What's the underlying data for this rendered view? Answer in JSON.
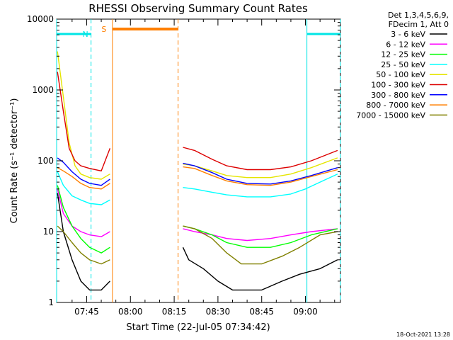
{
  "chart_data": {
    "type": "line",
    "title": "RHESSI Observing Summary Count Rates",
    "xlabel": "Start Time (22-Jul-05 07:34:42)",
    "ylabel": "Count Rate (s⁻¹ detector⁻¹)",
    "yscale": "log",
    "ylim": [
      1,
      10000
    ],
    "xlim": [
      "07:34:42",
      "09:12:00"
    ],
    "y_ticks": [
      "1",
      "10",
      "100",
      "1000",
      "10000"
    ],
    "x_ticks": [
      "07:45",
      "08:00",
      "08:15",
      "08:30",
      "08:45",
      "09:00"
    ],
    "grid": false,
    "legend_position": "right",
    "legend_header": [
      "Det 1,3,4,5,6,9,",
      "FDecim 1, Att 0"
    ],
    "timestamp": "18-Oct-2021 13:28",
    "flag_labels": {
      "n": "N",
      "s": "S"
    },
    "flags": [
      {
        "name": "night",
        "label_key": "n",
        "color": "#00e5e5",
        "intervals": [
          [
            "07:34:42",
            "07:46:30"
          ],
          [
            "09:00:30",
            "09:12:00"
          ]
        ]
      },
      {
        "name": "saa",
        "label_key": "s",
        "color": "#ff7f00",
        "intervals": [
          [
            "07:53:50",
            "08:16:20"
          ]
        ]
      }
    ],
    "gaps": [
      [
        "07:53:50",
        "08:17:30"
      ]
    ],
    "series": [
      {
        "name": "3 - 6 keV",
        "color": "#000000",
        "points": [
          [
            "07:35",
            35
          ],
          [
            "07:37",
            10
          ],
          [
            "07:40",
            4
          ],
          [
            "07:43",
            2
          ],
          [
            "07:46",
            1.5
          ],
          [
            "07:50",
            1.5
          ],
          [
            "07:53",
            2
          ],
          [
            "08:18",
            6
          ],
          [
            "08:20",
            4
          ],
          [
            "08:25",
            3
          ],
          [
            "08:30",
            2
          ],
          [
            "08:35",
            1.5
          ],
          [
            "08:45",
            1.5
          ],
          [
            "08:52",
            2
          ],
          [
            "08:58",
            2.5
          ],
          [
            "09:05",
            3
          ],
          [
            "09:11",
            4
          ]
        ]
      },
      {
        "name": "6 - 12 keV",
        "color": "#ff00ff",
        "points": [
          [
            "07:35",
            40
          ],
          [
            "07:37",
            18
          ],
          [
            "07:40",
            12
          ],
          [
            "07:43",
            10
          ],
          [
            "07:46",
            9
          ],
          [
            "07:50",
            8.5
          ],
          [
            "07:53",
            10
          ],
          [
            "08:18",
            11
          ],
          [
            "08:22",
            10
          ],
          [
            "08:28",
            9
          ],
          [
            "08:33",
            8
          ],
          [
            "08:40",
            7.5
          ],
          [
            "08:48",
            8
          ],
          [
            "08:55",
            9
          ],
          [
            "09:02",
            10
          ],
          [
            "09:11",
            11
          ]
        ]
      },
      {
        "name": "12 - 25 keV",
        "color": "#00ff00",
        "points": [
          [
            "07:35",
            45
          ],
          [
            "07:37",
            22
          ],
          [
            "07:40",
            12
          ],
          [
            "07:43",
            8
          ],
          [
            "07:46",
            6
          ],
          [
            "07:50",
            5
          ],
          [
            "07:53",
            6
          ],
          [
            "08:18",
            12
          ],
          [
            "08:22",
            11
          ],
          [
            "08:28",
            9
          ],
          [
            "08:33",
            7
          ],
          [
            "08:40",
            6
          ],
          [
            "08:48",
            6
          ],
          [
            "08:55",
            7
          ],
          [
            "09:02",
            9
          ],
          [
            "09:11",
            11
          ]
        ]
      },
      {
        "name": "25 - 50 keV",
        "color": "#00ffff",
        "points": [
          [
            "07:35",
            70
          ],
          [
            "07:37",
            45
          ],
          [
            "07:40",
            32
          ],
          [
            "07:43",
            28
          ],
          [
            "07:46",
            25
          ],
          [
            "07:50",
            24
          ],
          [
            "07:53",
            28
          ],
          [
            "08:18",
            42
          ],
          [
            "08:22",
            40
          ],
          [
            "08:28",
            36
          ],
          [
            "08:33",
            33
          ],
          [
            "08:40",
            31
          ],
          [
            "08:48",
            31
          ],
          [
            "08:55",
            34
          ],
          [
            "09:00",
            40
          ],
          [
            "09:05",
            50
          ],
          [
            "09:11",
            65
          ]
        ]
      },
      {
        "name": "50 - 100 keV",
        "color": "#e5e500",
        "points": [
          [
            "07:35",
            3500
          ],
          [
            "07:37",
            800
          ],
          [
            "07:39",
            180
          ],
          [
            "07:41",
            85
          ],
          [
            "07:43",
            65
          ],
          [
            "07:46",
            58
          ],
          [
            "07:50",
            55
          ],
          [
            "07:53",
            65
          ],
          [
            "08:18",
            90
          ],
          [
            "08:22",
            85
          ],
          [
            "08:28",
            72
          ],
          [
            "08:33",
            62
          ],
          [
            "08:40",
            58
          ],
          [
            "08:48",
            58
          ],
          [
            "08:55",
            65
          ],
          [
            "09:02",
            80
          ],
          [
            "09:11",
            110
          ]
        ]
      },
      {
        "name": "100 - 300 keV",
        "color": "#dd0000",
        "points": [
          [
            "07:35",
            1800
          ],
          [
            "07:37",
            500
          ],
          [
            "07:39",
            150
          ],
          [
            "07:41",
            100
          ],
          [
            "07:43",
            85
          ],
          [
            "07:46",
            78
          ],
          [
            "07:50",
            72
          ],
          [
            "07:53",
            150
          ],
          [
            "08:18",
            155
          ],
          [
            "08:22",
            140
          ],
          [
            "08:28",
            105
          ],
          [
            "08:33",
            85
          ],
          [
            "08:40",
            75
          ],
          [
            "08:48",
            75
          ],
          [
            "08:55",
            82
          ],
          [
            "09:02",
            100
          ],
          [
            "09:11",
            140
          ]
        ]
      },
      {
        "name": "300 - 800 keV",
        "color": "#0000ff",
        "points": [
          [
            "07:35",
            110
          ],
          [
            "07:37",
            95
          ],
          [
            "07:40",
            70
          ],
          [
            "07:43",
            55
          ],
          [
            "07:46",
            48
          ],
          [
            "07:50",
            45
          ],
          [
            "07:53",
            55
          ],
          [
            "08:18",
            92
          ],
          [
            "08:22",
            85
          ],
          [
            "08:28",
            68
          ],
          [
            "08:33",
            55
          ],
          [
            "08:40",
            48
          ],
          [
            "08:48",
            47
          ],
          [
            "08:55",
            52
          ],
          [
            "09:02",
            62
          ],
          [
            "09:11",
            80
          ]
        ]
      },
      {
        "name": "800 - 7000 keV",
        "color": "#ff7f00",
        "points": [
          [
            "07:35",
            80
          ],
          [
            "07:37",
            72
          ],
          [
            "07:40",
            60
          ],
          [
            "07:43",
            48
          ],
          [
            "07:46",
            42
          ],
          [
            "07:50",
            40
          ],
          [
            "07:53",
            48
          ],
          [
            "08:18",
            82
          ],
          [
            "08:22",
            78
          ],
          [
            "08:28",
            62
          ],
          [
            "08:33",
            52
          ],
          [
            "08:40",
            46
          ],
          [
            "08:48",
            45
          ],
          [
            "08:55",
            50
          ],
          [
            "09:02",
            60
          ],
          [
            "09:11",
            75
          ]
        ]
      },
      {
        "name": "7000 - 15000 keV",
        "color": "#808000",
        "points": [
          [
            "07:35",
            12
          ],
          [
            "07:37",
            10
          ],
          [
            "07:40",
            7
          ],
          [
            "07:43",
            5
          ],
          [
            "07:46",
            4
          ],
          [
            "07:50",
            3.5
          ],
          [
            "07:53",
            4
          ],
          [
            "08:18",
            12
          ],
          [
            "08:22",
            11
          ],
          [
            "08:28",
            8
          ],
          [
            "08:33",
            5
          ],
          [
            "08:38",
            3.5
          ],
          [
            "08:45",
            3.5
          ],
          [
            "08:52",
            4.5
          ],
          [
            "08:58",
            6
          ],
          [
            "09:05",
            9
          ],
          [
            "09:11",
            10
          ]
        ]
      }
    ]
  }
}
